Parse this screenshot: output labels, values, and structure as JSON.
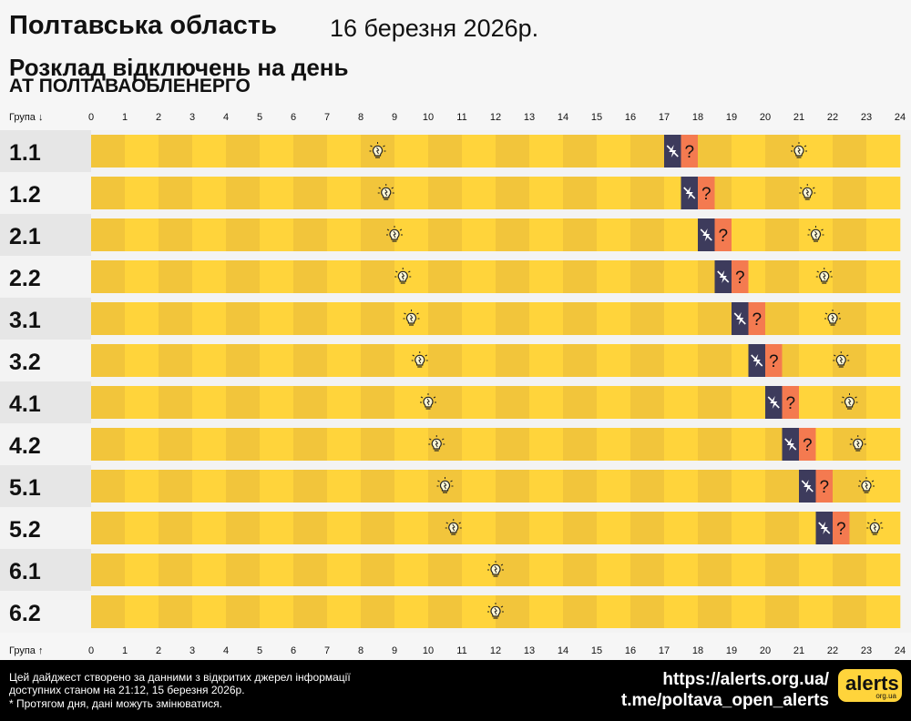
{
  "header": {
    "title": "Полтавська область",
    "date": "16 березня 2026р.",
    "subtitle": "Розклад відключень на день",
    "company": "АТ ПОЛТАВАОБЛЕНЕРГО"
  },
  "colors": {
    "power_on": "#ffd43b",
    "power_on_dark": "#f2c53b",
    "power_off": "#3d3b5c",
    "maybe_off": "#f47a50",
    "group_bg_dark": "#e6e6e6",
    "group_bg_light": "#f3f3f3"
  },
  "icons": {
    "power_on": "lightbulb-icon",
    "power_off": "no-power-icon",
    "maybe_off": "question-icon"
  },
  "chart_data": {
    "type": "table",
    "x_label_top": "Група ↓",
    "x_label_bottom": "Група ↑",
    "hours": [
      "0",
      "1",
      "2",
      "3",
      "4",
      "5",
      "6",
      "7",
      "8",
      "9",
      "10",
      "11",
      "12",
      "13",
      "14",
      "15",
      "16",
      "17",
      "18",
      "19",
      "20",
      "21",
      "22",
      "23",
      "24"
    ],
    "groups": [
      {
        "name": "1.1",
        "off": [
          17,
          17.5
        ],
        "maybe": [
          17.5,
          18
        ]
      },
      {
        "name": "1.2",
        "off": [
          17.5,
          18
        ],
        "maybe": [
          18,
          18.5
        ]
      },
      {
        "name": "2.1",
        "off": [
          18,
          18.5
        ],
        "maybe": [
          18.5,
          19
        ]
      },
      {
        "name": "2.2",
        "off": [
          18.5,
          19
        ],
        "maybe": [
          19,
          19.5
        ]
      },
      {
        "name": "3.1",
        "off": [
          19,
          19.5
        ],
        "maybe": [
          19.5,
          20
        ]
      },
      {
        "name": "3.2",
        "off": [
          19.5,
          20
        ],
        "maybe": [
          20,
          20.5
        ]
      },
      {
        "name": "4.1",
        "off": [
          20,
          20.5
        ],
        "maybe": [
          20.5,
          21
        ]
      },
      {
        "name": "4.2",
        "off": [
          20.5,
          21
        ],
        "maybe": [
          21,
          21.5
        ]
      },
      {
        "name": "5.1",
        "off": [
          21,
          21.5
        ],
        "maybe": [
          21.5,
          22
        ]
      },
      {
        "name": "5.2",
        "off": [
          21.5,
          22
        ],
        "maybe": [
          22,
          22.5
        ]
      },
      {
        "name": "6.1",
        "off": null,
        "maybe": null
      },
      {
        "name": "6.2",
        "off": null,
        "maybe": null
      }
    ]
  },
  "footer": {
    "note_line1": "Цей дайджест створено за данними з відкритих джерел інформації",
    "note_line2": "доступних станом на 21:12, 15 березня 2026р.",
    "note_line3": "* Протягом дня, дані можуть змінюватися.",
    "link1": "https://alerts.org.ua/",
    "link2": "t.me/poltava_open_alerts",
    "logo_main": "alerts",
    "logo_sub": "org.ua"
  }
}
